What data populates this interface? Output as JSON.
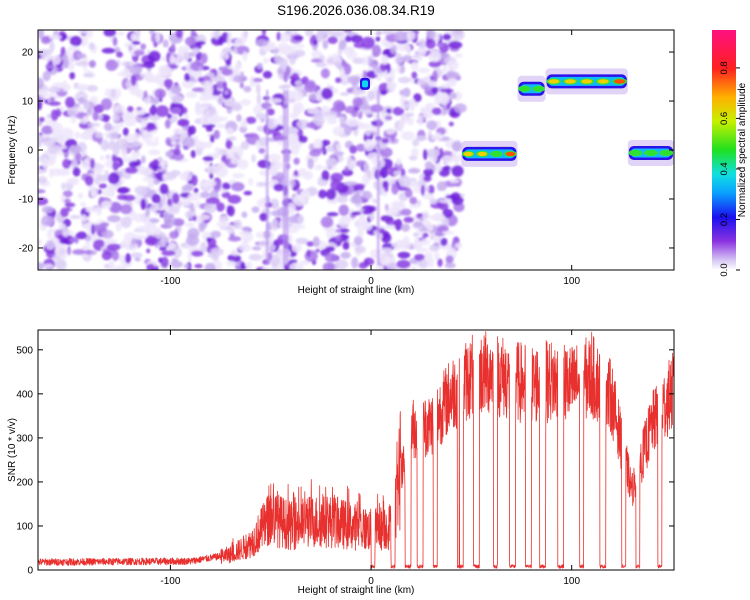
{
  "title": "S196.2026.036.08.34.R19",
  "chart_data": [
    {
      "type": "heatmap",
      "name": "spectrogram",
      "xlabel": "Height of straight line (km)",
      "ylabel": "Frequency (Hz)",
      "xlim": [
        -166,
        151
      ],
      "ylim": [
        -24.5,
        24.5
      ],
      "xticks": [
        -100,
        0,
        100
      ],
      "yticks": [
        -20,
        -10,
        0,
        10,
        20
      ],
      "noise_region_x": [
        -166,
        45
      ],
      "signal_tracks": [
        {
          "x_start": 45,
          "x_end": 73,
          "freq": -0.8,
          "amplitude": 0.85
        },
        {
          "x_start": 73,
          "x_end": 87,
          "freq": 12.5,
          "amplitude": 0.7
        },
        {
          "x_start": 87,
          "x_end": 128,
          "freq": 14,
          "amplitude": 0.92
        },
        {
          "x_start": 128,
          "x_end": 151,
          "freq": -0.6,
          "amplitude": 0.75
        }
      ],
      "spot": {
        "x": -3,
        "freq": 13.5,
        "amplitude": 0.25
      },
      "colorbar": {
        "label": "Normalized spectral amplitude",
        "range": [
          0,
          0.95
        ],
        "ticks": [
          0.0,
          0.2,
          0.4,
          0.6,
          0.8
        ]
      }
    },
    {
      "type": "line",
      "name": "snr",
      "xlabel": "Height of straight line (km)",
      "ylabel": "SNR (10 * v/v)",
      "xlim": [
        -166,
        151
      ],
      "ylim": [
        0,
        545
      ],
      "xticks": [
        -100,
        0,
        100
      ],
      "yticks": [
        0,
        100,
        200,
        300,
        400,
        500
      ],
      "color": "#e8312e",
      "envelope": {
        "x": [
          -166,
          -90,
          -70,
          -60,
          -50,
          -40,
          -30,
          -20,
          -10,
          0,
          10,
          20,
          30,
          40,
          50,
          60,
          70,
          80,
          90,
          100,
          110,
          120,
          130,
          140,
          151
        ],
        "y": [
          18,
          20,
          35,
          60,
          120,
          100,
          110,
          110,
          100,
          90,
          100,
          320,
          330,
          400,
          440,
          450,
          430,
          420,
          430,
          420,
          440,
          390,
          180,
          330,
          410
        ]
      },
      "dropouts": [
        {
          "x_start": 0,
          "x_end": 2
        },
        {
          "x_start": 10,
          "x_end": 12
        },
        {
          "x_start": 17,
          "x_end": 20
        },
        {
          "x_start": 23,
          "x_end": 26
        },
        {
          "x_start": 31,
          "x_end": 33
        },
        {
          "x_start": 43,
          "x_end": 46
        },
        {
          "x_start": 51,
          "x_end": 54
        },
        {
          "x_start": 61,
          "x_end": 63
        },
        {
          "x_start": 69,
          "x_end": 72
        },
        {
          "x_start": 77,
          "x_end": 80
        },
        {
          "x_start": 84,
          "x_end": 87
        },
        {
          "x_start": 93,
          "x_end": 96
        },
        {
          "x_start": 104,
          "x_end": 106
        },
        {
          "x_start": 114,
          "x_end": 117
        },
        {
          "x_start": 125,
          "x_end": 127
        },
        {
          "x_start": 132,
          "x_end": 134
        },
        {
          "x_start": 143,
          "x_end": 145
        }
      ],
      "spikes": [
        {
          "x": 110,
          "y": 540
        },
        {
          "x": 44,
          "y": 480
        }
      ]
    }
  ]
}
